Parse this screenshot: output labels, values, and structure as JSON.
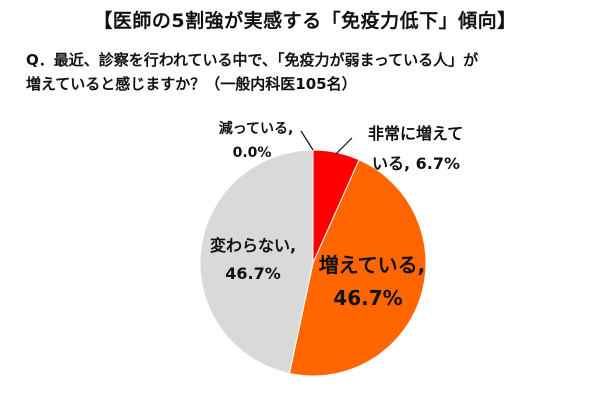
{
  "title": "【医師の5割強が実感する「免疫力低下」傾向】",
  "question": {
    "line1": "Q．最近、診察を行われている中で、「免疫力が弱まっている人」が",
    "line2": "増えていると感じますか？（一般内科医105名）"
  },
  "chart_data": {
    "type": "pie",
    "unit": "%",
    "slices": [
      {
        "label": "非常に増えている",
        "value": 6.7,
        "value_label": "6.7%",
        "color": "#ff0000"
      },
      {
        "label": "増えている",
        "value": 46.7,
        "value_label": "46.7%",
        "color": "#ff6600"
      },
      {
        "label": "変わらない",
        "value": 46.7,
        "value_label": "46.7%",
        "color": "#d9d9d9"
      },
      {
        "label": "減っている",
        "value": 0.0,
        "value_label": "0.0%",
        "color": "#bfbfbf"
      }
    ],
    "labels": {
      "very_increasing": {
        "line1": "非常に増えて",
        "line2": "いる, 6.7%"
      },
      "increasing": {
        "line1": "増えている,",
        "line2": "46.7%"
      },
      "unchanged": {
        "line1": "変わらない,",
        "line2": "46.7%"
      },
      "decreasing": {
        "line1": "減っている,",
        "line2": "0.0%"
      }
    }
  }
}
